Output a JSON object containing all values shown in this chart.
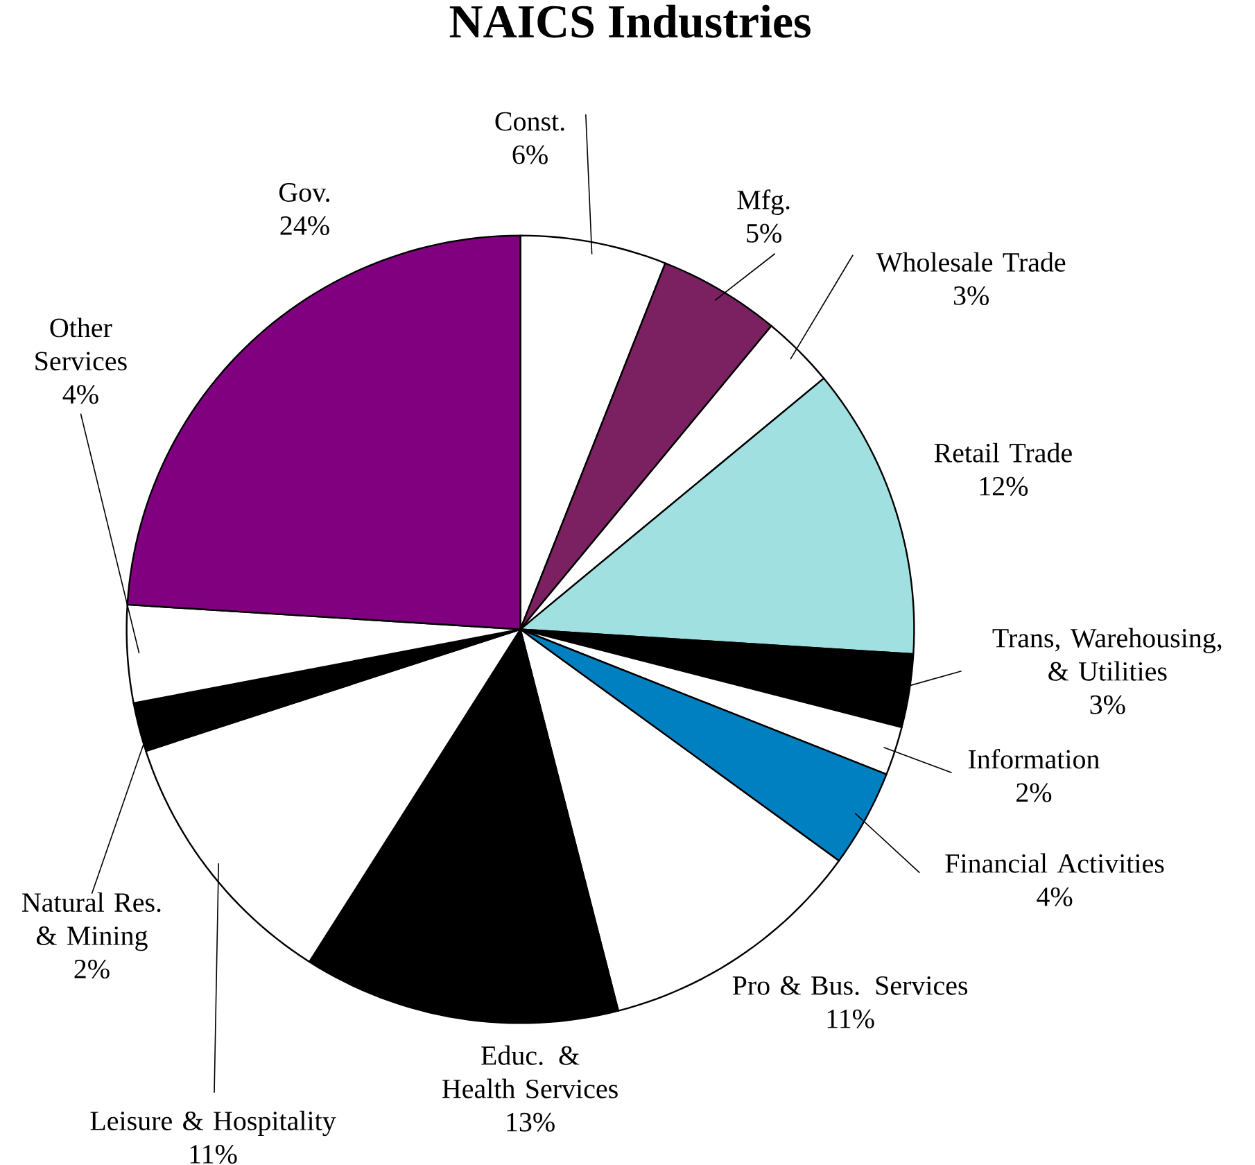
{
  "chart_data": {
    "type": "pie",
    "title": "NAICS Industries",
    "categories": [
      "Const.",
      "Mfg.",
      "Wholesale Trade",
      "Retail Trade",
      "Trans, Warehousing, & Utilities",
      "Information",
      "Financial Activities",
      "Pro & Bus. Services",
      "Educ. & Health Services",
      "Leisure & Hospitality",
      "Natural Res. & Mining",
      "Other Services",
      "Gov."
    ],
    "values": [
      6,
      5,
      3,
      12,
      3,
      2,
      4,
      11,
      13,
      11,
      2,
      4,
      24
    ],
    "value_labels": [
      "6%",
      "5%",
      "3%",
      "12%",
      "3%",
      "2%",
      "4%",
      "11%",
      "13%",
      "11%",
      "2%",
      "4%",
      "24%"
    ],
    "colors": [
      "#ffffff",
      "#7b2060",
      "#ffffff",
      "#a0e0e0",
      "#000000",
      "#ffffff",
      "#0080c0",
      "#ffffff",
      "#000000",
      "#ffffff",
      "#000000",
      "#ffffff",
      "#800080"
    ]
  }
}
